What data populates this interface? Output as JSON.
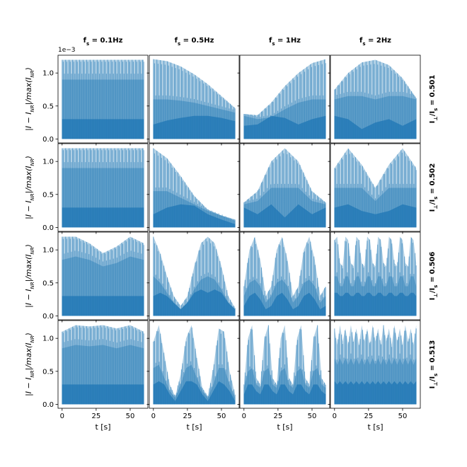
{
  "chart_data": {
    "type": "area",
    "layout": "grid 4x4, shared axes",
    "col_titles": [
      "f_s = 0.1Hz",
      "f_s = 0.5Hz",
      "f_s = 1Hz",
      "f_s = 2Hz"
    ],
    "row_titles": [
      "I_⊥/I_s = 0.501",
      "I_⊥/I_s = 0.502",
      "I_⊥/I_s = 0.506",
      "I_⊥/I_s = 0.513"
    ],
    "xlabel": "t [s]",
    "ylabel": "|I − I_NR|/max(I_NR)",
    "x_ticks": [
      0,
      25,
      50
    ],
    "y_ticks": [
      "0.0",
      "0.5",
      "1.0"
    ],
    "y_offset_text": "1e−3",
    "xlim": [
      -3,
      63
    ],
    "ylim": [
      -6e-05,
      0.00127
    ],
    "color": "#1f77b4",
    "envelope_description": "upper envelope of |I - I_NR|/max(I_NR) per panel (scale 1e-3); shaded oscillating bands underneath",
    "panels": [
      {
        "row": 0,
        "col": 0,
        "x": [
          0,
          10,
          20,
          30,
          40,
          50,
          60
        ],
        "upper": [
          1.2,
          1.2,
          1.2,
          1.2,
          1.2,
          1.2,
          1.2
        ],
        "mid": [
          0.9,
          0.9,
          0.9,
          0.9,
          0.9,
          0.9,
          0.9
        ],
        "lower": [
          0.3,
          0.3,
          0.3,
          0.3,
          0.3,
          0.3,
          0.3
        ]
      },
      {
        "row": 0,
        "col": 1,
        "x": [
          0,
          10,
          20,
          30,
          40,
          50,
          60
        ],
        "upper": [
          1.21,
          1.18,
          1.1,
          0.98,
          0.83,
          0.65,
          0.47
        ],
        "mid": [
          0.6,
          0.6,
          0.58,
          0.55,
          0.5,
          0.45,
          0.4
        ],
        "lower": [
          0.22,
          0.28,
          0.32,
          0.35,
          0.35,
          0.32,
          0.27
        ]
      },
      {
        "row": 0,
        "col": 2,
        "x": [
          0,
          10,
          20,
          30,
          40,
          50,
          60
        ],
        "upper": [
          0.38,
          0.36,
          0.55,
          0.8,
          1.0,
          1.15,
          1.21
        ],
        "mid": [
          0.35,
          0.3,
          0.33,
          0.45,
          0.55,
          0.6,
          0.6
        ],
        "lower": [
          0.2,
          0.22,
          0.35,
          0.32,
          0.22,
          0.3,
          0.35
        ]
      },
      {
        "row": 0,
        "col": 3,
        "x": [
          0,
          10,
          20,
          30,
          40,
          50,
          60
        ],
        "upper": [
          0.75,
          1.0,
          1.16,
          1.2,
          1.12,
          0.92,
          0.62
        ],
        "mid": [
          0.6,
          0.65,
          0.65,
          0.6,
          0.65,
          0.65,
          0.6
        ],
        "lower": [
          0.35,
          0.3,
          0.15,
          0.25,
          0.3,
          0.2,
          0.3
        ]
      },
      {
        "row": 1,
        "col": 0,
        "x": [
          0,
          10,
          20,
          30,
          40,
          50,
          60
        ],
        "upper": [
          1.2,
          1.2,
          1.2,
          1.2,
          1.2,
          1.2,
          1.2
        ],
        "mid": [
          0.9,
          0.9,
          0.9,
          0.9,
          0.9,
          0.9,
          0.9
        ],
        "lower": [
          0.3,
          0.3,
          0.3,
          0.3,
          0.3,
          0.3,
          0.3
        ]
      },
      {
        "row": 1,
        "col": 1,
        "x": [
          0,
          10,
          20,
          30,
          40,
          50,
          60
        ],
        "upper": [
          1.2,
          1.05,
          0.78,
          0.48,
          0.27,
          0.18,
          0.12
        ],
        "mid": [
          0.55,
          0.55,
          0.45,
          0.35,
          0.25,
          0.18,
          0.1
        ],
        "lower": [
          0.2,
          0.3,
          0.35,
          0.33,
          0.2,
          0.12,
          0.05
        ]
      },
      {
        "row": 1,
        "col": 2,
        "x": [
          0,
          10,
          20,
          30,
          40,
          50,
          60
        ],
        "upper": [
          0.38,
          0.55,
          1.0,
          1.2,
          1.0,
          0.55,
          0.38
        ],
        "mid": [
          0.35,
          0.4,
          0.6,
          0.6,
          0.6,
          0.4,
          0.35
        ],
        "lower": [
          0.3,
          0.2,
          0.35,
          0.15,
          0.35,
          0.2,
          0.3
        ]
      },
      {
        "row": 1,
        "col": 3,
        "x": [
          0,
          10,
          20,
          30,
          40,
          50,
          60
        ],
        "upper": [
          0.9,
          1.2,
          0.95,
          0.6,
          0.95,
          1.2,
          0.9
        ],
        "mid": [
          0.6,
          0.6,
          0.6,
          0.4,
          0.6,
          0.6,
          0.6
        ],
        "lower": [
          0.3,
          0.35,
          0.25,
          0.2,
          0.25,
          0.35,
          0.3
        ]
      },
      {
        "row": 2,
        "col": 0,
        "x": [
          0,
          10,
          20,
          30,
          40,
          50,
          60
        ],
        "upper": [
          1.2,
          1.2,
          1.1,
          0.95,
          1.05,
          1.2,
          1.1
        ],
        "mid": [
          0.85,
          0.9,
          0.85,
          0.75,
          0.8,
          0.9,
          0.85
        ],
        "lower": [
          0.3,
          0.3,
          0.3,
          0.3,
          0.3,
          0.3,
          0.3
        ]
      },
      {
        "row": 2,
        "col": 1,
        "x": [
          0,
          5,
          10,
          15,
          20,
          25,
          30,
          35,
          40,
          45,
          50,
          55,
          60
        ],
        "upper": [
          1.2,
          0.95,
          0.6,
          0.3,
          0.15,
          0.3,
          0.75,
          1.1,
          1.2,
          1.1,
          0.75,
          0.3,
          0.12
        ],
        "mid": [
          0.6,
          0.5,
          0.35,
          0.2,
          0.1,
          0.2,
          0.4,
          0.55,
          0.6,
          0.55,
          0.4,
          0.2,
          0.1
        ],
        "lower": [
          0.3,
          0.35,
          0.3,
          0.2,
          0.1,
          0.2,
          0.35,
          0.4,
          0.35,
          0.4,
          0.35,
          0.2,
          0.1
        ]
      },
      {
        "row": 2,
        "col": 2,
        "x": [
          0,
          4,
          8,
          12,
          16,
          20,
          24,
          28,
          32,
          36,
          40,
          44,
          48,
          52,
          56,
          60
        ],
        "upper": [
          0.45,
          1.0,
          1.2,
          0.85,
          0.3,
          0.45,
          1.0,
          1.2,
          0.85,
          0.3,
          0.45,
          1.0,
          1.2,
          0.85,
          0.3,
          0.45
        ],
        "mid": [
          0.3,
          0.5,
          0.55,
          0.45,
          0.2,
          0.3,
          0.5,
          0.55,
          0.45,
          0.2,
          0.3,
          0.5,
          0.55,
          0.45,
          0.2,
          0.3
        ],
        "lower": [
          0.15,
          0.3,
          0.35,
          0.25,
          0.1,
          0.15,
          0.3,
          0.35,
          0.25,
          0.1,
          0.15,
          0.3,
          0.35,
          0.25,
          0.1,
          0.15
        ]
      },
      {
        "row": 2,
        "col": 3,
        "x": [
          0,
          2,
          4,
          6,
          8,
          10,
          12,
          14,
          16,
          18,
          20,
          22,
          24,
          26,
          28,
          30,
          32,
          34,
          36,
          38,
          40,
          42,
          44,
          46,
          48,
          50,
          52,
          54,
          56,
          58,
          60
        ],
        "upper": [
          1.15,
          1.2,
          0.8,
          0.75,
          1.2,
          1.15,
          0.8,
          0.75,
          1.2,
          1.15,
          0.8,
          0.75,
          1.2,
          1.15,
          0.8,
          0.75,
          1.2,
          1.15,
          0.8,
          0.75,
          1.2,
          1.15,
          0.8,
          0.75,
          1.2,
          1.15,
          0.8,
          0.75,
          1.2,
          1.15,
          0.8
        ],
        "mid": [
          0.6,
          0.6,
          0.45,
          0.45,
          0.6,
          0.6,
          0.45,
          0.45,
          0.6,
          0.6,
          0.45,
          0.45,
          0.6,
          0.6,
          0.45,
          0.45,
          0.6,
          0.6,
          0.45,
          0.45,
          0.6,
          0.6,
          0.45,
          0.45,
          0.6,
          0.6,
          0.45,
          0.45,
          0.6,
          0.6,
          0.45
        ],
        "lower": [
          0.35,
          0.35,
          0.3,
          0.3,
          0.35,
          0.35,
          0.3,
          0.3,
          0.35,
          0.35,
          0.3,
          0.3,
          0.35,
          0.35,
          0.3,
          0.3,
          0.35,
          0.35,
          0.3,
          0.3,
          0.35,
          0.35,
          0.3,
          0.3,
          0.35,
          0.35,
          0.3,
          0.3,
          0.35,
          0.35,
          0.3
        ]
      },
      {
        "row": 3,
        "col": 0,
        "x": [
          0,
          10,
          20,
          30,
          40,
          50,
          60
        ],
        "upper": [
          1.1,
          1.2,
          1.18,
          1.2,
          1.15,
          1.2,
          1.1
        ],
        "mid": [
          0.85,
          0.9,
          0.88,
          0.9,
          0.85,
          0.9,
          0.85
        ],
        "lower": [
          0.3,
          0.3,
          0.3,
          0.3,
          0.3,
          0.3,
          0.3
        ]
      },
      {
        "row": 3,
        "col": 1,
        "x": [
          0,
          4,
          8,
          12,
          16,
          20,
          24,
          28,
          32,
          36,
          40,
          44,
          48,
          52,
          56,
          60
        ],
        "upper": [
          0.95,
          1.2,
          0.75,
          0.3,
          0.12,
          0.45,
          1.0,
          1.2,
          0.7,
          0.25,
          0.12,
          0.55,
          1.15,
          1.1,
          0.5,
          0.15
        ],
        "mid": [
          0.55,
          0.6,
          0.4,
          0.2,
          0.1,
          0.3,
          0.55,
          0.6,
          0.4,
          0.2,
          0.1,
          0.3,
          0.55,
          0.55,
          0.3,
          0.1
        ],
        "lower": [
          0.3,
          0.35,
          0.3,
          0.15,
          0.05,
          0.2,
          0.35,
          0.35,
          0.3,
          0.15,
          0.05,
          0.2,
          0.35,
          0.3,
          0.2,
          0.05
        ]
      },
      {
        "row": 3,
        "col": 2,
        "x": [
          0,
          3,
          6,
          9,
          12,
          15,
          18,
          21,
          24,
          27,
          30,
          33,
          36,
          39,
          42,
          45,
          48,
          51,
          54,
          57,
          60
        ],
        "upper": [
          0.3,
          1.0,
          1.2,
          0.4,
          0.3,
          1.0,
          1.2,
          0.4,
          0.3,
          1.0,
          1.2,
          0.4,
          0.3,
          1.0,
          1.2,
          0.4,
          0.3,
          1.0,
          1.2,
          0.4,
          0.3
        ],
        "mid": [
          0.25,
          0.5,
          0.55,
          0.3,
          0.25,
          0.5,
          0.55,
          0.3,
          0.25,
          0.5,
          0.55,
          0.3,
          0.25,
          0.5,
          0.55,
          0.3,
          0.25,
          0.5,
          0.55,
          0.3,
          0.25
        ],
        "lower": [
          0.15,
          0.3,
          0.3,
          0.2,
          0.15,
          0.3,
          0.3,
          0.2,
          0.15,
          0.3,
          0.3,
          0.2,
          0.15,
          0.3,
          0.3,
          0.2,
          0.15,
          0.3,
          0.3,
          0.2,
          0.15
        ]
      },
      {
        "row": 3,
        "col": 3,
        "x": [
          0,
          2,
          4,
          6,
          8,
          10,
          12,
          14,
          16,
          18,
          20,
          22,
          24,
          26,
          28,
          30,
          32,
          34,
          36,
          38,
          40,
          42,
          44,
          46,
          48,
          50,
          52,
          54,
          56,
          58,
          60
        ],
        "upper": [
          1.15,
          0.9,
          1.2,
          0.95,
          1.15,
          0.9,
          1.2,
          0.95,
          1.15,
          0.9,
          1.2,
          0.95,
          1.15,
          0.9,
          1.2,
          0.95,
          1.15,
          0.9,
          1.2,
          0.95,
          1.15,
          0.9,
          1.2,
          0.95,
          1.15,
          0.9,
          1.2,
          0.95,
          1.15,
          0.9,
          1.2
        ],
        "mid": [
          0.7,
          0.6,
          0.7,
          0.6,
          0.7,
          0.6,
          0.7,
          0.6,
          0.7,
          0.6,
          0.7,
          0.6,
          0.7,
          0.6,
          0.7,
          0.6,
          0.7,
          0.6,
          0.7,
          0.6,
          0.7,
          0.6,
          0.7,
          0.6,
          0.7,
          0.6,
          0.7,
          0.6,
          0.7,
          0.6,
          0.7
        ],
        "lower": [
          0.35,
          0.3,
          0.35,
          0.3,
          0.35,
          0.3,
          0.35,
          0.3,
          0.35,
          0.3,
          0.35,
          0.3,
          0.35,
          0.3,
          0.35,
          0.3,
          0.35,
          0.3,
          0.35,
          0.3,
          0.35,
          0.3,
          0.35,
          0.3,
          0.35,
          0.3,
          0.35,
          0.3,
          0.35,
          0.3,
          0.35
        ]
      }
    ]
  }
}
